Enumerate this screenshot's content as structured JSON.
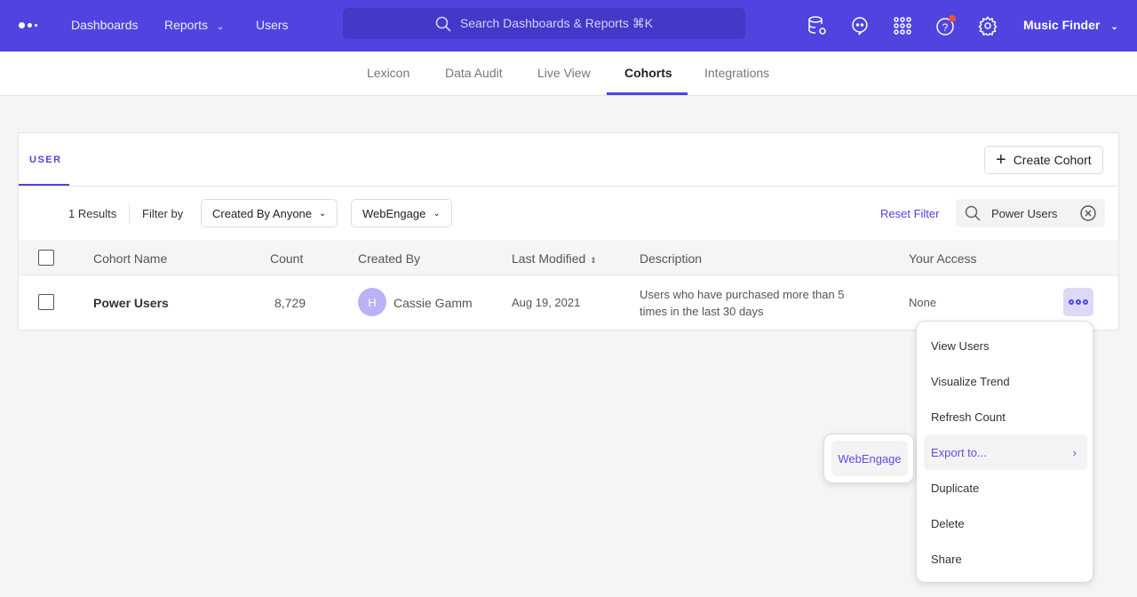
{
  "topbar": {
    "nav": [
      "Dashboards",
      "Reports",
      "Users"
    ],
    "search_placeholder": "Search Dashboards & Reports ⌘K",
    "project": "Music Finder",
    "icons": [
      "logo-icon",
      "database-settings-icon",
      "chat-icon",
      "apps-grid-icon",
      "help-icon",
      "settings-icon"
    ],
    "accent": "#4f44e0",
    "notification_color": "#e8553f"
  },
  "subnav": {
    "tabs": [
      "Lexicon",
      "Data Audit",
      "Live View",
      "Cohorts",
      "Integrations"
    ],
    "active": "Cohorts"
  },
  "card": {
    "tab": "USER",
    "create_label": "Create Cohort",
    "results": "1 Results",
    "filter_by": "Filter by",
    "filter_creator": "Created By Anyone",
    "filter_integration": "WebEngage",
    "reset": "Reset Filter",
    "search_value": "Power Users"
  },
  "table": {
    "headers": [
      "Cohort Name",
      "Count",
      "Created By",
      "Last Modified",
      "Description",
      "Your Access"
    ],
    "rows": [
      {
        "name": "Power Users",
        "count": "8,729",
        "avatar": "H",
        "created_by": "Cassie Gamm",
        "modified": "Aug 19, 2021",
        "description": "Users who have purchased more than 5 times in the last 30 days",
        "access": "None"
      }
    ]
  },
  "menu": {
    "items": [
      "View Users",
      "Visualize Trend",
      "Refresh Count",
      "Export to...",
      "Duplicate",
      "Delete",
      "Share"
    ],
    "highlighted": "Export to...",
    "submenu": [
      "WebEngage"
    ]
  }
}
